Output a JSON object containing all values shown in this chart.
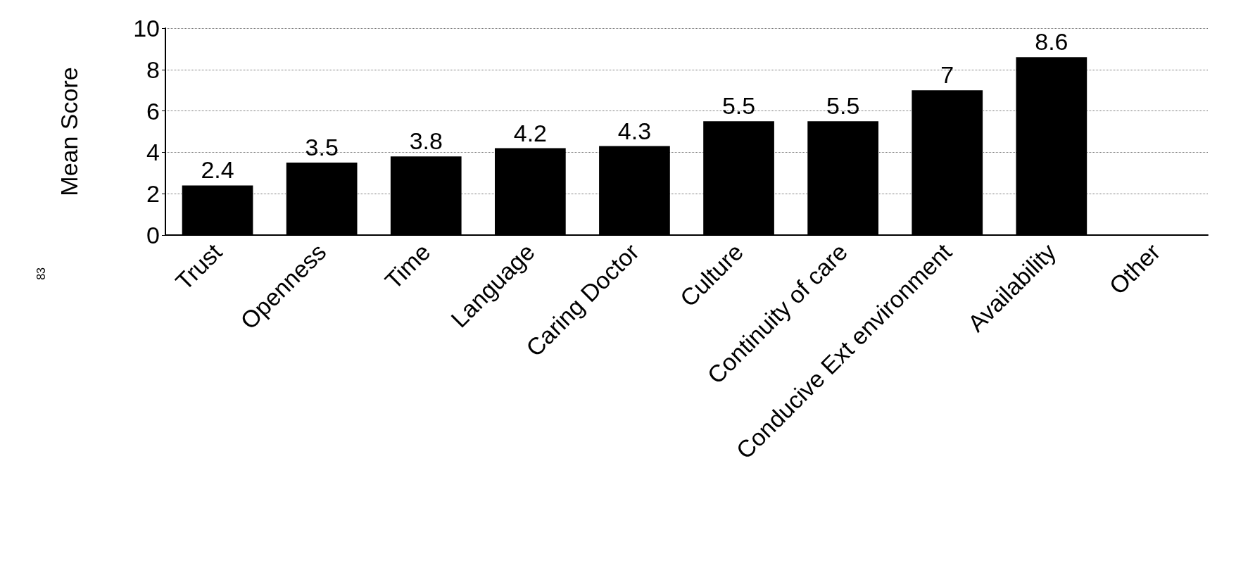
{
  "chart_data": {
    "type": "bar",
    "ylabel": "Mean Score",
    "categories": [
      "Trust",
      "Openness",
      "Time",
      "Language",
      "Caring Doctor",
      "Culture",
      "Continuity of care",
      "Conducive Ext environment",
      "Availability",
      "Other"
    ],
    "values": [
      2.4,
      3.5,
      3.8,
      4.2,
      4.3,
      5.5,
      5.5,
      7,
      8.6,
      null
    ],
    "color": "#000000",
    "ylim": [
      0,
      10
    ],
    "yticks": [
      0,
      2,
      4,
      6,
      8,
      10
    ],
    "grid": "y",
    "data_labels": true,
    "annotations": [
      "83"
    ]
  }
}
